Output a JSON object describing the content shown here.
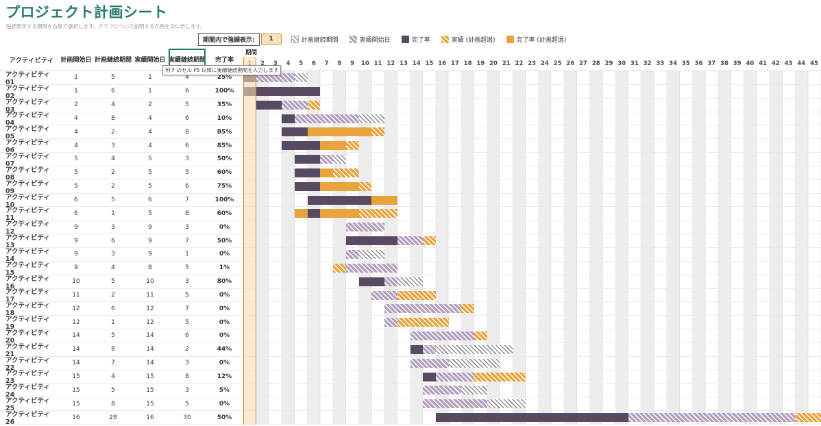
{
  "header": {
    "title": "プロジェクト計画シート",
    "subtitle": "強調表示する期間を右側で選択します。グラフについて説明する凡例を次に示します。"
  },
  "controls": {
    "highlight_label": "期間内で強調表示:",
    "highlight_value": "1"
  },
  "legend": [
    {
      "type": "plan",
      "label": "計画継続期間"
    },
    {
      "type": "act",
      "label": "実績開始日"
    },
    {
      "type": "comp",
      "label": "完了率"
    },
    {
      "type": "act-over",
      "label": "実績 (計画超過)"
    },
    {
      "type": "comp-over",
      "label": "完了率 (計画超過)"
    }
  ],
  "table": {
    "columns": [
      "アクティビティ",
      "計画開始日",
      "計画継続期間",
      "実績開始日",
      "実績継続期間",
      "完了率"
    ],
    "period_label": "期間"
  },
  "tooltip": "列 F のセル F5 以降に実績継続期間を入力します",
  "colors": {
    "title_teal": "#2a7a6f",
    "complete_purple": "#594a63",
    "actual_purple_light": "#b3a0bf",
    "overrun_orange": "#e8a33d",
    "plan_hatch_gray": "#8f8f8f",
    "highlight_fill": "#f3dbb0",
    "highlight_border": "#c7922f"
  },
  "chart_data": {
    "type": "gantt",
    "periods": 45,
    "highlight_period": 1,
    "xlabel": "期間",
    "rows": [
      {
        "name": "アクティビティ 01",
        "plan_start": 1,
        "plan_duration": 5,
        "actual_start": 1,
        "actual_duration": 4,
        "percent": 25
      },
      {
        "name": "アクティビティ 02",
        "plan_start": 1,
        "plan_duration": 6,
        "actual_start": 1,
        "actual_duration": 6,
        "percent": 100
      },
      {
        "name": "アクティビティ 03",
        "plan_start": 2,
        "plan_duration": 4,
        "actual_start": 2,
        "actual_duration": 5,
        "percent": 35
      },
      {
        "name": "アクティビティ 04",
        "plan_start": 4,
        "plan_duration": 8,
        "actual_start": 4,
        "actual_duration": 6,
        "percent": 10
      },
      {
        "name": "アクティビティ 05",
        "plan_start": 4,
        "plan_duration": 2,
        "actual_start": 4,
        "actual_duration": 8,
        "percent": 85
      },
      {
        "name": "アクティビティ 06",
        "plan_start": 4,
        "plan_duration": 3,
        "actual_start": 4,
        "actual_duration": 6,
        "percent": 85
      },
      {
        "name": "アクティビティ 07",
        "plan_start": 5,
        "plan_duration": 4,
        "actual_start": 5,
        "actual_duration": 3,
        "percent": 50
      },
      {
        "name": "アクティビティ 08",
        "plan_start": 5,
        "plan_duration": 2,
        "actual_start": 5,
        "actual_duration": 5,
        "percent": 60
      },
      {
        "name": "アクティビティ 09",
        "plan_start": 5,
        "plan_duration": 2,
        "actual_start": 5,
        "actual_duration": 6,
        "percent": 75
      },
      {
        "name": "アクティビティ 10",
        "plan_start": 6,
        "plan_duration": 5,
        "actual_start": 6,
        "actual_duration": 7,
        "percent": 100
      },
      {
        "name": "アクティビティ 11",
        "plan_start": 6,
        "plan_duration": 1,
        "actual_start": 5,
        "actual_duration": 8,
        "percent": 60
      },
      {
        "name": "アクティビティ 12",
        "plan_start": 9,
        "plan_duration": 3,
        "actual_start": 9,
        "actual_duration": 3,
        "percent": 0
      },
      {
        "name": "アクティビティ 13",
        "plan_start": 9,
        "plan_duration": 6,
        "actual_start": 9,
        "actual_duration": 7,
        "percent": 50
      },
      {
        "name": "アクティビティ 14",
        "plan_start": 9,
        "plan_duration": 3,
        "actual_start": 9,
        "actual_duration": 1,
        "percent": 0
      },
      {
        "name": "アクティビティ 15",
        "plan_start": 9,
        "plan_duration": 4,
        "actual_start": 8,
        "actual_duration": 5,
        "percent": 1
      },
      {
        "name": "アクティビティ 16",
        "plan_start": 10,
        "plan_duration": 5,
        "actual_start": 10,
        "actual_duration": 3,
        "percent": 80
      },
      {
        "name": "アクティビティ 17",
        "plan_start": 11,
        "plan_duration": 2,
        "actual_start": 11,
        "actual_duration": 5,
        "percent": 0
      },
      {
        "name": "アクティビティ 18",
        "plan_start": 12,
        "plan_duration": 6,
        "actual_start": 12,
        "actual_duration": 7,
        "percent": 0
      },
      {
        "name": "アクティビティ 19",
        "plan_start": 12,
        "plan_duration": 1,
        "actual_start": 12,
        "actual_duration": 5,
        "percent": 0
      },
      {
        "name": "アクティビティ 20",
        "plan_start": 14,
        "plan_duration": 5,
        "actual_start": 14,
        "actual_duration": 6,
        "percent": 0
      },
      {
        "name": "アクティビティ 21",
        "plan_start": 14,
        "plan_duration": 8,
        "actual_start": 14,
        "actual_duration": 2,
        "percent": 44
      },
      {
        "name": "アクティビティ 22",
        "plan_start": 14,
        "plan_duration": 7,
        "actual_start": 14,
        "actual_duration": 3,
        "percent": 0
      },
      {
        "name": "アクティビティ 23",
        "plan_start": 15,
        "plan_duration": 4,
        "actual_start": 15,
        "actual_duration": 8,
        "percent": 12
      },
      {
        "name": "アクティビティ 24",
        "plan_start": 15,
        "plan_duration": 5,
        "actual_start": 15,
        "actual_duration": 3,
        "percent": 5
      },
      {
        "name": "アクティビティ 25",
        "plan_start": 15,
        "plan_duration": 8,
        "actual_start": 15,
        "actual_duration": 5,
        "percent": 0
      },
      {
        "name": "アクティビティ 26",
        "plan_start": 16,
        "plan_duration": 28,
        "actual_start": 16,
        "actual_duration": 30,
        "percent": 50
      }
    ]
  }
}
